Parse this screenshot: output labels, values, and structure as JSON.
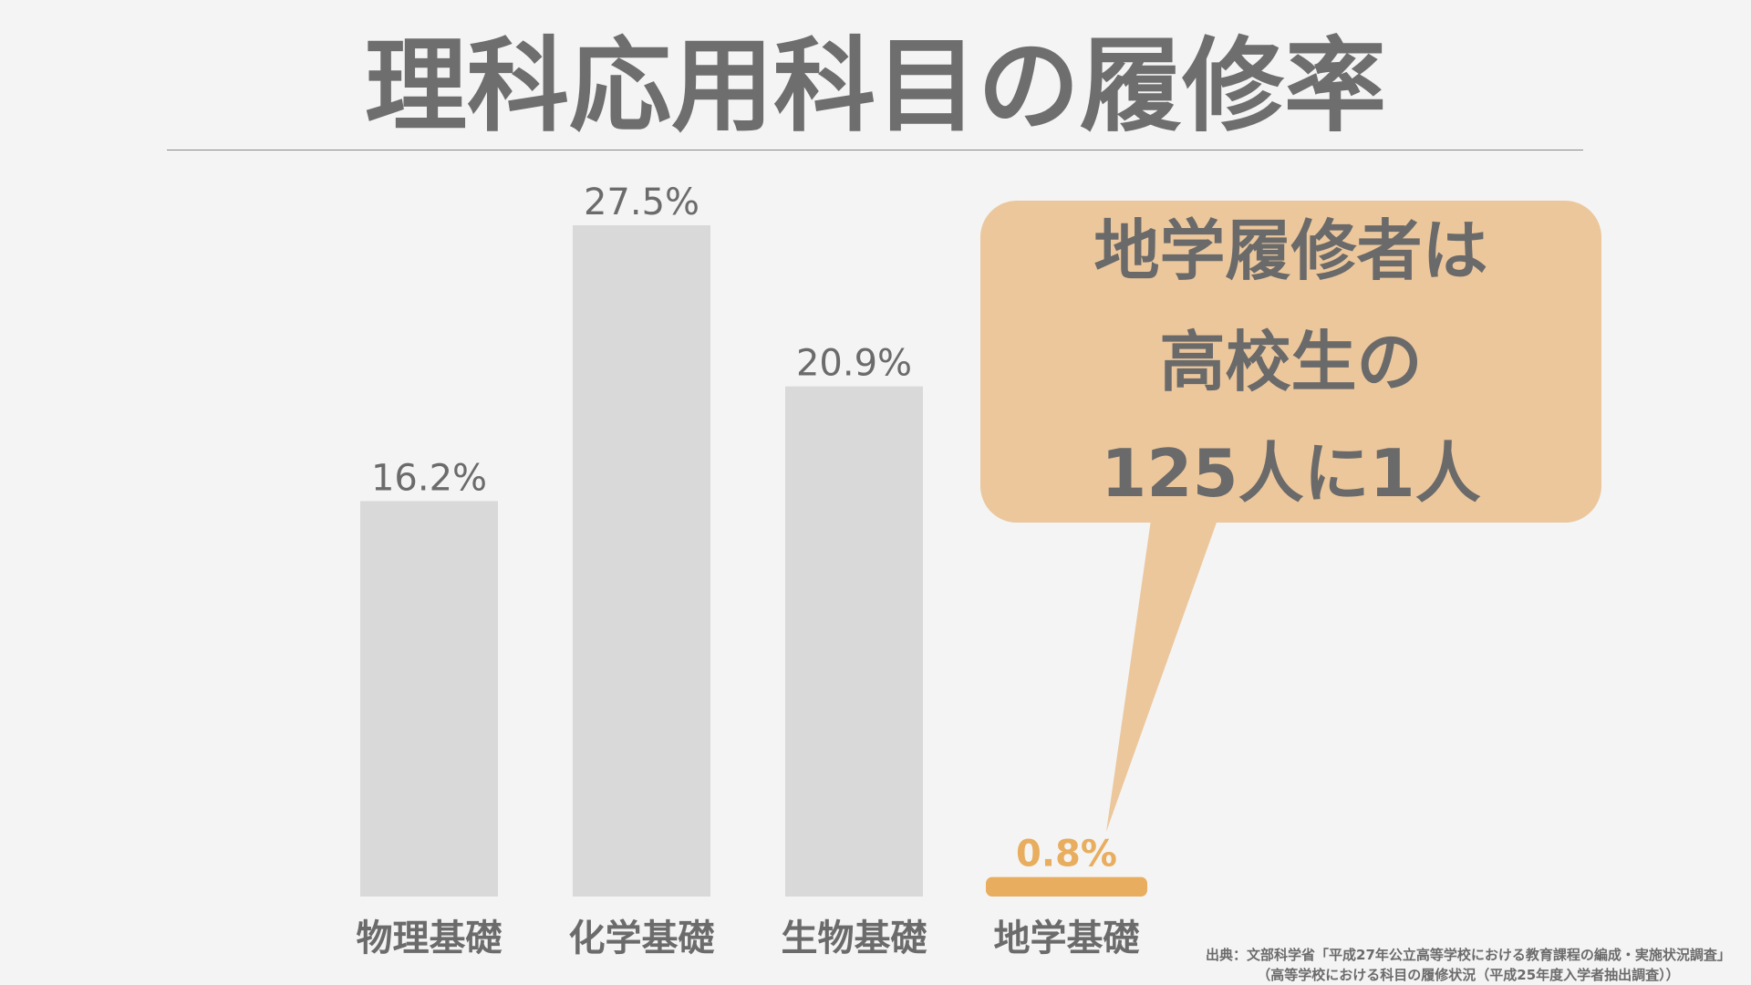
{
  "title": "理科応用科目の履修率",
  "chart_data": {
    "type": "bar",
    "categories": [
      "物理基礎",
      "化学基礎",
      "生物基礎",
      "地学基礎"
    ],
    "values": [
      16.2,
      27.5,
      20.9,
      0.8
    ],
    "value_labels": [
      "16.2%",
      "27.5%",
      "20.9%",
      "0.8%"
    ],
    "highlight_index": 3,
    "ylim": [
      0,
      27.5
    ],
    "grid": false,
    "colors": {
      "bar": "#d9d9d9",
      "highlight": "#e8ad5e"
    }
  },
  "callout": {
    "lines": [
      "地学履修者は",
      "高校生の",
      "125人に1人"
    ],
    "color": "#ecc79c"
  },
  "source": {
    "line1": "出典：文部科学省「平成27年公立高等学校における教育課程の編成・実施状況調査」",
    "line2": "（高等学校における科目の履修状況（平成25年度入学者抽出調査））"
  }
}
